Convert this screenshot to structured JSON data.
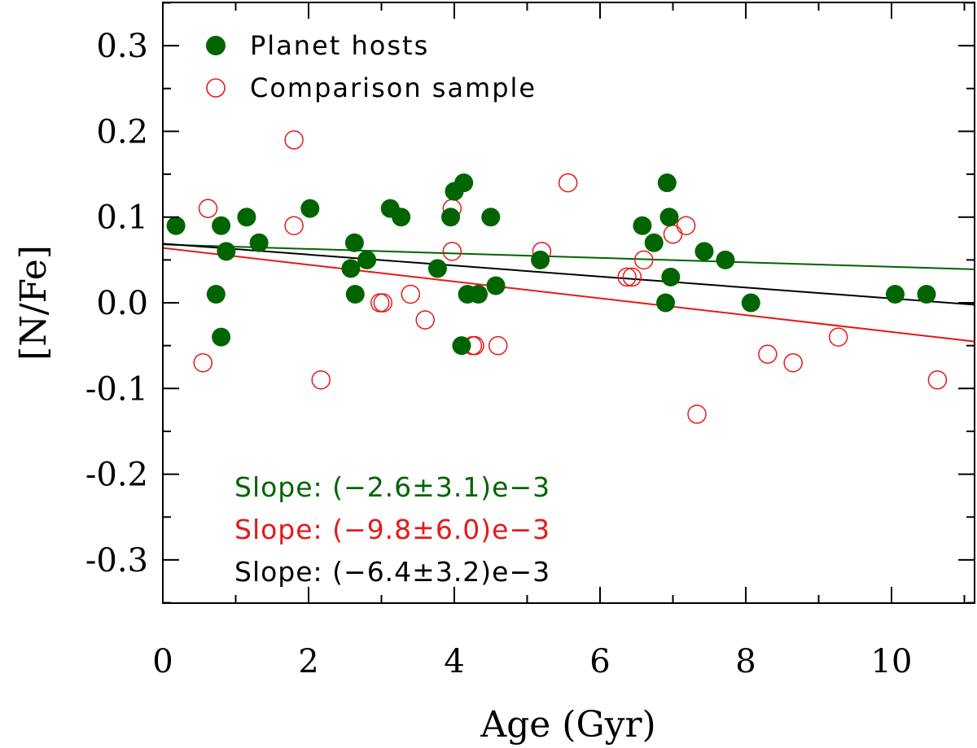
{
  "chart_data": {
    "type": "scatter",
    "xlabel": "Age (Gyr)",
    "ylabel": "[N/Fe]",
    "xlim": [
      0,
      11.15
    ],
    "ylim": [
      -0.35,
      0.35
    ],
    "x_ticks": [
      0,
      2,
      4,
      6,
      8,
      10
    ],
    "y_ticks": [
      -0.3,
      -0.2,
      -0.1,
      0.0,
      0.1,
      0.2,
      0.3
    ],
    "x_tick_labels": [
      "0",
      "2",
      "4",
      "6",
      "8",
      "10"
    ],
    "y_tick_labels": [
      "-0.3",
      "-0.2",
      "-0.1",
      "0.0",
      "0.1",
      "0.2",
      "0.3"
    ],
    "legend": {
      "position": "top-left"
    },
    "series": [
      {
        "name": "Planet hosts",
        "marker": "filled-circle",
        "color": "#006400",
        "points": [
          [
            0.18,
            0.09
          ],
          [
            0.73,
            0.01
          ],
          [
            0.8,
            0.09
          ],
          [
            0.8,
            -0.04
          ],
          [
            0.87,
            0.06
          ],
          [
            1.15,
            0.1
          ],
          [
            1.32,
            0.07
          ],
          [
            2.02,
            0.11
          ],
          [
            2.58,
            0.04
          ],
          [
            2.63,
            0.07
          ],
          [
            2.64,
            0.01
          ],
          [
            2.8,
            0.05
          ],
          [
            3.12,
            0.11
          ],
          [
            3.27,
            0.1
          ],
          [
            3.77,
            0.04
          ],
          [
            3.95,
            0.1
          ],
          [
            4.0,
            0.13
          ],
          [
            4.13,
            0.14
          ],
          [
            4.1,
            -0.05
          ],
          [
            4.18,
            0.01
          ],
          [
            4.33,
            0.01
          ],
          [
            4.5,
            0.1
          ],
          [
            4.57,
            0.02
          ],
          [
            5.18,
            0.05
          ],
          [
            6.58,
            0.09
          ],
          [
            6.74,
            0.07
          ],
          [
            6.9,
            0.0
          ],
          [
            6.92,
            0.14
          ],
          [
            6.95,
            0.1
          ],
          [
            6.97,
            0.03
          ],
          [
            7.43,
            0.06
          ],
          [
            7.72,
            0.05
          ],
          [
            8.07,
            0.0
          ],
          [
            10.05,
            0.01
          ],
          [
            10.48,
            0.01
          ]
        ]
      },
      {
        "name": "Comparison sample",
        "marker": "open-circle",
        "color": "#e51919",
        "points": [
          [
            0.55,
            -0.07
          ],
          [
            0.62,
            0.11
          ],
          [
            1.8,
            0.19
          ],
          [
            1.8,
            0.09
          ],
          [
            2.17,
            -0.09
          ],
          [
            2.98,
            0.0
          ],
          [
            3.02,
            0.0
          ],
          [
            3.4,
            0.01
          ],
          [
            3.6,
            -0.02
          ],
          [
            3.97,
            0.11
          ],
          [
            3.97,
            0.06
          ],
          [
            4.25,
            -0.05
          ],
          [
            4.28,
            -0.05
          ],
          [
            4.6,
            -0.05
          ],
          [
            5.2,
            0.06
          ],
          [
            5.56,
            0.14
          ],
          [
            6.37,
            0.03
          ],
          [
            6.44,
            0.03
          ],
          [
            6.6,
            0.05
          ],
          [
            7.0,
            0.08
          ],
          [
            7.18,
            0.09
          ],
          [
            7.33,
            -0.13
          ],
          [
            8.3,
            -0.06
          ],
          [
            8.65,
            -0.07
          ],
          [
            9.27,
            -0.04
          ],
          [
            10.63,
            -0.09
          ]
        ]
      }
    ],
    "fits": [
      {
        "color": "#006400",
        "y0": 0.068,
        "slope": -0.0026,
        "label": "Slope: (−2.6±3.1)e−3"
      },
      {
        "color": "#e51919",
        "y0": 0.064,
        "slope": -0.0098,
        "label": "Slope: (−9.8±6.0)e−3"
      },
      {
        "color": "#000000",
        "y0": 0.069,
        "slope": -0.0064,
        "label": "Slope: (−6.4±3.2)e−3"
      }
    ]
  }
}
